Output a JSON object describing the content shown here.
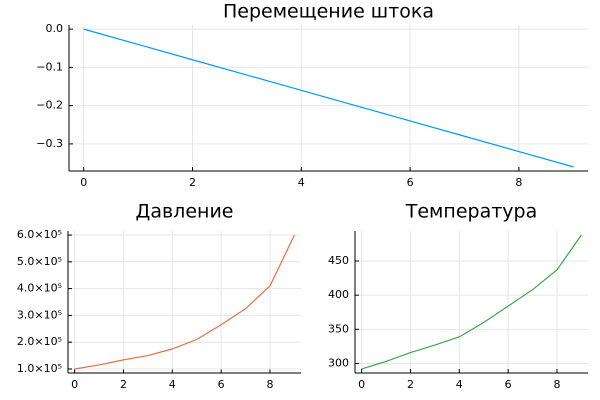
{
  "chart_data": [
    {
      "type": "line",
      "title": "Перемещение штока",
      "x": [
        0,
        1,
        2,
        3,
        4,
        5,
        6,
        7,
        8,
        9
      ],
      "values": [
        0,
        -0.04,
        -0.08,
        -0.12,
        -0.16,
        -0.2,
        -0.24,
        -0.28,
        -0.32,
        -0.36
      ],
      "color": "#009afa",
      "grid": true,
      "xlim": [
        -0.27,
        9.27
      ],
      "xticks": [
        0,
        2,
        4,
        6,
        8
      ],
      "ylim": [
        -0.3708,
        0.0108
      ],
      "yticks": [
        {
          "value": 0,
          "label": "0.0"
        },
        {
          "value": -0.1,
          "label": "−0.1"
        },
        {
          "value": -0.2,
          "label": "−0.2"
        },
        {
          "value": -0.3,
          "label": "−0.3"
        }
      ]
    },
    {
      "type": "line",
      "title": "Давление",
      "x": [
        0,
        1,
        2,
        3,
        4,
        5,
        6,
        7,
        8,
        9
      ],
      "values": [
        100000,
        115000,
        134000,
        150000,
        175000,
        210000,
        265000,
        325000,
        410000,
        600000
      ],
      "color": "#e26f46",
      "grid": true,
      "xlim": [
        -0.27,
        9.27
      ],
      "xticks": [
        0,
        2,
        4,
        6,
        8
      ],
      "ylim": [
        85000,
        615000
      ],
      "yticks": [
        {
          "value": 100000,
          "label": "1.0×10⁵"
        },
        {
          "value": 200000,
          "label": "2.0×10⁵"
        },
        {
          "value": 300000,
          "label": "3.0×10⁵"
        },
        {
          "value": 400000,
          "label": "4.0×10⁵"
        },
        {
          "value": 500000,
          "label": "5.0×10⁵"
        },
        {
          "value": 600000,
          "label": "6.0×10⁵"
        }
      ]
    },
    {
      "type": "line",
      "title": "Температура",
      "x": [
        0,
        1,
        2,
        3,
        4,
        5,
        6,
        7,
        8,
        9
      ],
      "values": [
        292,
        303,
        316,
        327,
        339,
        360,
        384,
        408,
        437,
        488
      ],
      "color": "#3ea44e",
      "grid": true,
      "xlim": [
        -0.27,
        9.27
      ],
      "xticks": [
        0,
        2,
        4,
        6,
        8
      ],
      "ylim": [
        286.1,
        493.9
      ],
      "yticks": [
        300,
        350,
        400,
        450
      ]
    }
  ]
}
